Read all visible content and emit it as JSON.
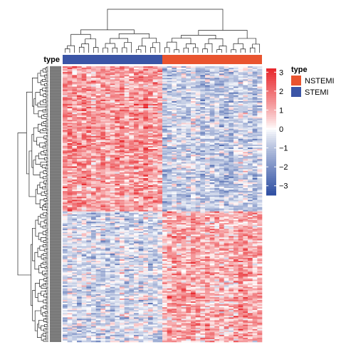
{
  "chart_data": {
    "type": "heatmap",
    "title": "",
    "annotation": {
      "title": "type",
      "groups": [
        {
          "name": "STEMI",
          "color": "#3B55A6",
          "columns": 21
        },
        {
          "name": "NSTEMI",
          "color": "#E9542F",
          "columns": 21
        }
      ]
    },
    "column_count": 42,
    "row_count": 190,
    "row_clusters": [
      {
        "rows": 100,
        "pattern": "high in STEMI, low in NSTEMI"
      },
      {
        "rows": 90,
        "pattern": "low in STEMI, high in NSTEMI"
      }
    ],
    "color_scale": {
      "ticks": [
        3,
        2,
        1,
        0,
        -1,
        -2,
        -3
      ],
      "labels": [
        "3",
        "2",
        "1",
        "0",
        "−1",
        "−2",
        "−3"
      ],
      "range": [
        -3.5,
        3.2
      ],
      "colors": {
        "high": "#E8262B",
        "mid": "#FFFFFF",
        "low": "#2D4EA2"
      }
    },
    "legend": {
      "title": "type",
      "entries": [
        {
          "label": "NSTEMI",
          "color": "#E9542F"
        },
        {
          "label": "STEMI",
          "color": "#3B55A6"
        }
      ]
    }
  }
}
